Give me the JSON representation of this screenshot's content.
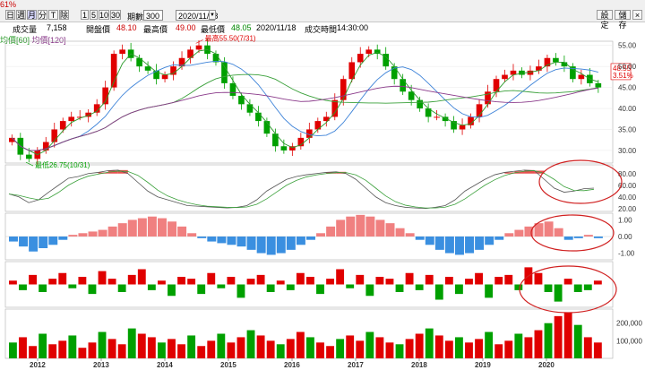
{
  "toolbar": {
    "period_buttons": [
      "日",
      "週",
      "月",
      "分",
      "T",
      "除"
    ],
    "minute_buttons": [
      "1",
      "5",
      "10",
      "30"
    ],
    "period_label": "期數",
    "period_value": "300",
    "date_value": "2020/11/18",
    "right_buttons": [
      "設定",
      "儲存"
    ],
    "left_percent": "61%"
  },
  "info": {
    "volume_label": "成交量",
    "volume_value": "7,158",
    "open_label": "開盤價",
    "open_value": "48.10",
    "high_label": "最高價",
    "high_value": "49.00",
    "low_label": "最低價",
    "low_value": "48.05",
    "date_value": "2020/11/18",
    "time_label": "成交時間",
    "time_value": "14:30:00"
  },
  "legend": {
    "ma60": "均價[60]",
    "ma120": "均價[120]"
  },
  "annotations": {
    "high_text": "最高55.50(7/31)",
    "low_text": "最低26.75(10/31)",
    "last_price": "48.55",
    "last_change": "3.51%"
  },
  "price_axis": [
    "55.00",
    "50.00",
    "45.00",
    "40.00",
    "35.00",
    "30.00"
  ],
  "kd_axis": [
    "80.00",
    "60.00",
    "40.00",
    "20.00"
  ],
  "macd_axis": [
    "1.00",
    "0.00",
    "-1.00"
  ],
  "volume_axis": [
    "200,000",
    "100,000"
  ],
  "x_axis": [
    "2012",
    "2013",
    "2014",
    "2015",
    "2016",
    "2017",
    "2018",
    "2019",
    "2020"
  ],
  "colors": {
    "up": "#e00000",
    "down": "#00a000",
    "ma_blue": "#3c82d8",
    "ma_green": "#2a9a2a",
    "ma_purple": "#8a3a8a",
    "circle": "#d02020"
  },
  "chart_data": [
    {
      "type": "line",
      "title": "",
      "series": [
        {
          "name": "",
          "values": [
            33,
            29,
            28,
            30,
            32,
            35,
            37,
            38,
            38,
            39,
            41,
            45,
            53,
            54,
            52,
            50,
            49,
            47,
            48,
            50,
            52,
            54,
            55,
            53,
            51,
            46,
            43,
            41,
            39,
            37,
            34,
            31,
            30,
            31,
            33,
            35,
            37,
            38,
            42,
            47,
            51,
            53,
            54,
            53,
            50,
            47,
            44,
            42,
            40,
            38,
            38,
            37,
            35,
            36,
            38,
            41,
            44,
            47,
            48,
            49,
            48,
            49,
            50,
            52,
            51,
            50,
            47,
            48,
            46,
            45
          ]
        }
      ],
      "ylim": [
        27,
        56
      ],
      "annotations": [
        "最高55.50(7/31)",
        "最低26.75(10/31)"
      ]
    },
    {
      "type": "line",
      "series": [
        {
          "name": "",
          "values": [
            45,
            40,
            30,
            35,
            48,
            60,
            72,
            75,
            80,
            82,
            85,
            86,
            80,
            65,
            50,
            40,
            35,
            30,
            25,
            24,
            23,
            22,
            21,
            22,
            25,
            35,
            50,
            60,
            70,
            75,
            78,
            80,
            82,
            83,
            80,
            70,
            55,
            40,
            30,
            25,
            22,
            21,
            20,
            22,
            25,
            35,
            50,
            60,
            70,
            78,
            82,
            84,
            86,
            85,
            70,
            55,
            48,
            50,
            54,
            55
          ]
        }
      ],
      "ylim": [
        15,
        95
      ]
    },
    {
      "type": "bar",
      "values": [
        -0.3,
        -0.6,
        -0.9,
        -0.7,
        -0.5,
        -0.2,
        0.1,
        0.2,
        0.3,
        0.4,
        0.6,
        0.8,
        1.0,
        1.1,
        1.2,
        1.1,
        0.9,
        0.6,
        0.2,
        -0.1,
        -0.3,
        -0.4,
        -0.5,
        -0.6,
        -0.8,
        -1.0,
        -1.1,
        -1.0,
        -0.8,
        -0.5,
        -0.2,
        0.2,
        0.6,
        1.0,
        1.2,
        1.3,
        1.2,
        1.0,
        0.8,
        0.5,
        0.2,
        -0.2,
        -0.5,
        -0.8,
        -1.0,
        -1.1,
        -1.0,
        -0.8,
        -0.5,
        -0.2,
        0.2,
        0.4,
        0.6,
        0.8,
        0.9,
        0.5,
        -0.2,
        -0.1,
        0.1,
        -0.1
      ],
      "ylim": [
        -1.4,
        1.4
      ]
    },
    {
      "type": "bar",
      "values": [
        0.2,
        -0.3,
        0.5,
        -0.4,
        0.3,
        0.6,
        -0.2,
        0.4,
        -0.5,
        0.7,
        0.3,
        -0.4,
        0.5,
        0.8,
        -0.3,
        0.2,
        -0.6,
        0.4,
        0.3,
        -0.5,
        0.6,
        -0.2,
        0.4,
        -0.7,
        0.3,
        0.5,
        -0.4,
        0.2,
        -0.3,
        0.6,
        0.4,
        -0.5,
        0.3,
        0.8,
        -0.2,
        0.5,
        -0.6,
        0.4,
        0.3,
        -0.4,
        0.6,
        -0.3,
        0.5,
        -0.8,
        0.4,
        -0.5,
        0.3,
        0.6,
        -0.7,
        0.4,
        0.5,
        -0.3,
        0.9,
        0.6,
        -0.4,
        -0.9,
        0.3,
        -0.4,
        -0.3,
        0.2
      ],
      "ylim": [
        -1.2,
        1.2
      ]
    },
    {
      "type": "bar",
      "values": [
        90,
        120,
        70,
        140,
        80,
        100,
        130,
        60,
        90,
        150,
        110,
        80,
        170,
        140,
        120,
        90,
        110,
        80,
        130,
        70,
        100,
        140,
        90,
        120,
        160,
        130,
        100,
        80,
        110,
        150,
        120,
        90,
        70,
        110,
        130,
        100,
        150,
        120,
        90,
        80,
        110,
        140,
        170,
        130,
        100,
        120,
        90,
        110,
        150,
        80,
        100,
        140,
        120,
        160,
        200,
        240,
        260,
        190,
        120,
        90
      ],
      "ylim": [
        0,
        280000
      ]
    }
  ]
}
